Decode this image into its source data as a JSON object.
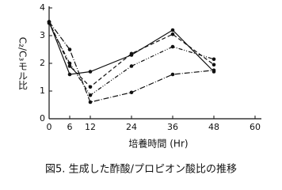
{
  "chart_data": {
    "type": "line",
    "y_label": "C₂/C₃モル比",
    "x_label": "培養時間 (Hr)",
    "caption": "図5. 生成した酢酸/プロピオン酸比の推移",
    "x": [
      0,
      6,
      12,
      24,
      36,
      48
    ],
    "series": [
      {
        "color": "#111111",
        "dash": "solid",
        "values": [
          3.5,
          1.6,
          1.7,
          2.3,
          3.2,
          1.7
        ]
      },
      {
        "color": "#111111",
        "dash": "dashed",
        "values": [
          3.5,
          1.9,
          1.15,
          2.35,
          3.05,
          1.95
        ]
      },
      {
        "color": "#111111",
        "dash": "dash-dot-dot",
        "values": [
          3.45,
          2.0,
          0.85,
          1.9,
          2.6,
          2.15
        ]
      },
      {
        "color": "#111111",
        "dash": "dash-dot",
        "values": [
          3.5,
          2.5,
          0.6,
          0.95,
          1.6,
          1.75
        ]
      }
    ],
    "xlim": [
      0,
      60
    ],
    "xticks": [
      0,
      6,
      12,
      24,
      36,
      48,
      60
    ],
    "ylim": [
      0,
      4
    ],
    "yticks": [
      0,
      1,
      2,
      3,
      4
    ]
  }
}
